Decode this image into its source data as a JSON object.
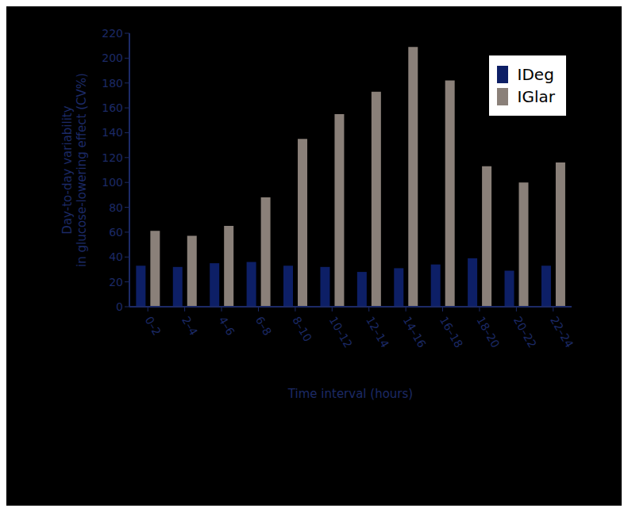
{
  "chart_data": {
    "type": "bar",
    "xlabel": "Time interval (hours)",
    "ylabel": "Day-to-day variability in glucose-lowering effect (CV%)",
    "categories": [
      "0–2",
      "2–4",
      "4–6",
      "6–8",
      "8–10",
      "10–12",
      "12–14",
      "14–16",
      "16–18",
      "18–20",
      "20–22",
      "22–24"
    ],
    "series": [
      {
        "name": "IDeg",
        "color": "#0d1f66",
        "values": [
          33,
          32,
          35,
          36,
          33,
          32,
          28,
          31,
          34,
          39,
          29,
          33
        ]
      },
      {
        "name": "IGlar",
        "color": "#8a8079",
        "values": [
          61,
          57,
          65,
          88,
          135,
          155,
          173,
          209,
          182,
          113,
          100,
          116
        ]
      }
    ],
    "ylim": [
      0,
      220
    ],
    "yticks": [
      0,
      20,
      40,
      60,
      80,
      100,
      120,
      140,
      160,
      180,
      200,
      220
    ],
    "legend": "upper right",
    "grid": false
  }
}
